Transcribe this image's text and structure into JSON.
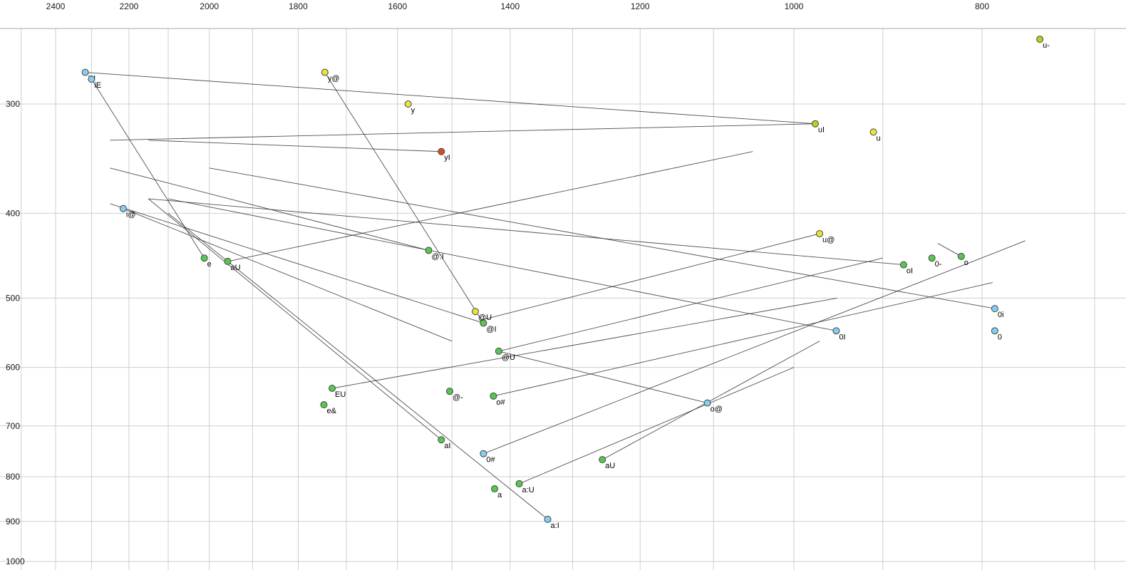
{
  "chart_data": {
    "type": "scatter",
    "title": "Vowel formant plot (F2 horizontal reversed, F1 vertical reversed, log scales)",
    "xlabel": "",
    "ylabel": "",
    "x_axis": {
      "scale": "log",
      "reversed": true,
      "labeled_ticks": [
        2400,
        2200,
        2000,
        1800,
        1600,
        1400,
        1200,
        1000,
        800
      ],
      "grid_ticks": [
        2500,
        2400,
        2300,
        2200,
        2100,
        2000,
        1900,
        1800,
        1700,
        1600,
        1500,
        1400,
        1300,
        1200,
        1100,
        1000,
        900,
        800,
        700
      ]
    },
    "y_axis": {
      "scale": "log",
      "reversed": true,
      "labeled_ticks": [
        300,
        400,
        500,
        600,
        700,
        800,
        900,
        1000
      ],
      "grid_ticks": [
        300,
        400,
        500,
        600,
        700,
        800,
        900,
        1000
      ]
    },
    "colors": {
      "yellow": "#e8e33a",
      "green": "#55c94f",
      "cyan": "#86cdef",
      "red": "#d2501e",
      "yellow_green": "#b4d41c"
    },
    "points": [
      {
        "label": "u-",
        "f2": 747,
        "f1": 253,
        "color": "yellow_green"
      },
      {
        "label": "iU",
        "f2": 2317,
        "f1": 276,
        "color": "cyan"
      },
      {
        "label": "iE",
        "f2": 2300,
        "f1": 281,
        "color": "cyan"
      },
      {
        "label": "y@",
        "f2": 1744,
        "f1": 276,
        "color": "yellow"
      },
      {
        "label": "y",
        "f2": 1580,
        "f1": 300,
        "color": "yellow"
      },
      {
        "label": "uI",
        "f2": 975,
        "f1": 316,
        "color": "yellow_green"
      },
      {
        "label": "u",
        "f2": 910,
        "f1": 323,
        "color": "yellow"
      },
      {
        "label": "yI",
        "f2": 1519,
        "f1": 340,
        "color": "red"
      },
      {
        "label": "i@",
        "f2": 2215,
        "f1": 395,
        "color": "cyan"
      },
      {
        "label": "e",
        "f2": 2012,
        "f1": 450,
        "color": "green"
      },
      {
        "label": "aU",
        "f2": 1957,
        "f1": 454,
        "color": "green"
      },
      {
        "label": "@:I",
        "f2": 1542,
        "f1": 441,
        "color": "green"
      },
      {
        "label": "u@",
        "f2": 970,
        "f1": 422,
        "color": "yellow"
      },
      {
        "label": "oI",
        "f2": 878,
        "f1": 458,
        "color": "green"
      },
      {
        "label": "0-",
        "f2": 849,
        "f1": 450,
        "color": "green"
      },
      {
        "label": "o",
        "f2": 820,
        "f1": 448,
        "color": "green"
      },
      {
        "label": "@U",
        "f2": 1459,
        "f1": 518,
        "color": "yellow"
      },
      {
        "label": "@I",
        "f2": 1445,
        "f1": 534,
        "color": "green"
      },
      {
        "label": "@U",
        "f2": 1419,
        "f1": 575,
        "color": "green"
      },
      {
        "label": "0i",
        "f2": 788,
        "f1": 514,
        "color": "cyan"
      },
      {
        "label": "0I",
        "f2": 951,
        "f1": 545,
        "color": "cyan"
      },
      {
        "label": "0",
        "f2": 788,
        "f1": 545,
        "color": "cyan"
      },
      {
        "label": "EU",
        "f2": 1729,
        "f1": 634,
        "color": "green"
      },
      {
        "label": "e&",
        "f2": 1746,
        "f1": 662,
        "color": "green"
      },
      {
        "label": "@-",
        "f2": 1504,
        "f1": 639,
        "color": "green"
      },
      {
        "label": "o#",
        "f2": 1428,
        "f1": 647,
        "color": "green"
      },
      {
        "label": "o@",
        "f2": 1108,
        "f1": 659,
        "color": "cyan"
      },
      {
        "label": "aI",
        "f2": 1519,
        "f1": 726,
        "color": "green"
      },
      {
        "label": "0#",
        "f2": 1445,
        "f1": 753,
        "color": "cyan"
      },
      {
        "label": "aU",
        "f2": 1255,
        "f1": 765,
        "color": "green"
      },
      {
        "label": "a",
        "f2": 1426,
        "f1": 826,
        "color": "green"
      },
      {
        "label": "a:U",
        "f2": 1385,
        "f1": 815,
        "color": "green"
      },
      {
        "label": "a:I",
        "f2": 1339,
        "f1": 895,
        "color": "cyan"
      }
    ],
    "segments": [
      {
        "from": [
          2317,
          276
        ],
        "to": [
          975,
          316
        ]
      },
      {
        "from": [
          2300,
          281
        ],
        "to": [
          2012,
          450
        ]
      },
      {
        "from": [
          2215,
          395
        ],
        "to": [
          1500,
          560
        ]
      },
      {
        "from": [
          1744,
          276
        ],
        "to": [
          1445,
          534
        ]
      },
      {
        "from": [
          1519,
          340
        ],
        "to": [
          2150,
          330
        ]
      },
      {
        "from": [
          975,
          316
        ],
        "to": [
          2250,
          330
        ]
      },
      {
        "from": [
          970,
          422
        ],
        "to": [
          1450,
          530
        ]
      },
      {
        "from": [
          878,
          458
        ],
        "to": [
          2150,
          385
        ]
      },
      {
        "from": [
          843,
          433
        ],
        "to": [
          820,
          448
        ]
      },
      {
        "from": [
          788,
          514
        ],
        "to": [
          2000,
          355
        ]
      },
      {
        "from": [
          951,
          545
        ],
        "to": [
          2100,
          385
        ]
      },
      {
        "from": [
          1542,
          441
        ],
        "to": [
          2250,
          355
        ]
      },
      {
        "from": [
          1445,
          534
        ],
        "to": [
          2250,
          390
        ]
      },
      {
        "from": [
          1419,
          575
        ],
        "to": [
          900,
          450
        ]
      },
      {
        "from": [
          1729,
          634
        ],
        "to": [
          950,
          500
        ]
      },
      {
        "from": [
          1428,
          647
        ],
        "to": [
          790,
          480
        ]
      },
      {
        "from": [
          1445,
          753
        ],
        "to": [
          760,
          430
        ]
      },
      {
        "from": [
          1519,
          726
        ],
        "to": [
          2150,
          385
        ]
      },
      {
        "from": [
          1339,
          895
        ],
        "to": [
          2100,
          400
        ]
      },
      {
        "from": [
          1255,
          765
        ],
        "to": [
          970,
          560
        ]
      },
      {
        "from": [
          1385,
          815
        ],
        "to": [
          1000,
          600
        ]
      },
      {
        "from": [
          1108,
          659
        ],
        "to": [
          1419,
          575
        ]
      },
      {
        "from": [
          1957,
          454
        ],
        "to": [
          1050,
          340
        ]
      }
    ],
    "style": {
      "grid_color": "#cfcfcf",
      "border_color": "#aaaaaa",
      "segment_color": "#3c3c3c",
      "tick_text_color": "#1a1a1a",
      "point_stroke": "#444444",
      "background": "#ffffff"
    }
  }
}
